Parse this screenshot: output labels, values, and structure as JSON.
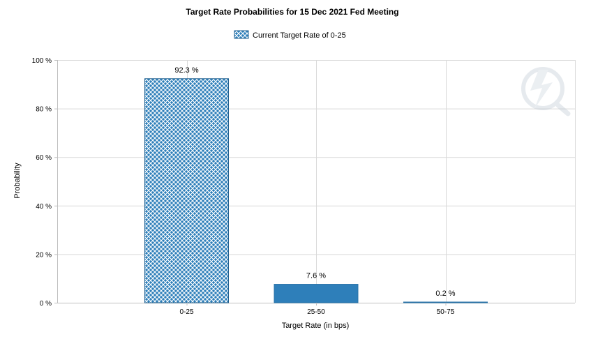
{
  "chart_data": {
    "type": "bar",
    "title": "Target Rate Probabilities for 15 Dec 2021 Fed Meeting",
    "xlabel": "Target Rate (in bps)",
    "ylabel": "Probability",
    "categories": [
      "0-25",
      "25-50",
      "50-75"
    ],
    "values": [
      92.3,
      7.6,
      0.2
    ],
    "data_labels": [
      "92.3 %",
      "7.6 %",
      "0.2 %"
    ],
    "current_index": 0,
    "ylim": [
      0,
      100
    ],
    "yticks": [
      0,
      20,
      40,
      60,
      80,
      100
    ],
    "ytick_labels": [
      "0 %",
      "20 %",
      "40 %",
      "60 %",
      "80 %",
      "100 %"
    ],
    "legend": {
      "label": "Current Target Rate of 0-25",
      "position": "top-center"
    },
    "grid": true,
    "colors": {
      "bar": "#2e7fba",
      "bar_current_pattern": "#2e7fba",
      "grid": "#d9d9d9",
      "axis": "#bfbfbf"
    }
  }
}
